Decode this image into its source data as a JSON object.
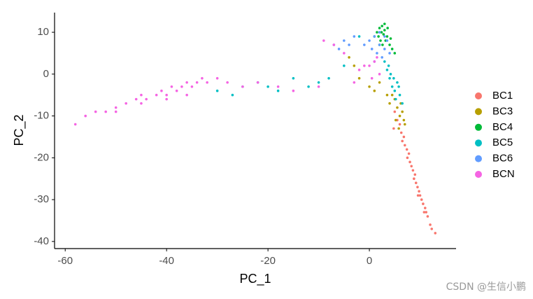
{
  "chart_data": {
    "type": "scatter",
    "xlabel": "PC_1",
    "ylabel": "PC_2",
    "xlim": [
      -62.1,
      17.1
    ],
    "ylim": [
      -41.7,
      14.7
    ],
    "xticks": [
      -60,
      -40,
      -20,
      0
    ],
    "yticks": [
      10,
      0,
      -10,
      -20,
      -30,
      -40
    ],
    "grid": false,
    "legend": "right",
    "series": [
      {
        "name": "BC1",
        "color": "#F8766D",
        "x": [
          5,
          5.5,
          6,
          6.3,
          6.8,
          7,
          7.4,
          7.8,
          8,
          8.3,
          8.6,
          9,
          9.2,
          9.5,
          9.8,
          10,
          10.3,
          10.6,
          11,
          11.2,
          11.5,
          12,
          6.5,
          7.5,
          8.8,
          9.6,
          10.8,
          4.8,
          12.3,
          13
        ],
        "values": [
          -9,
          -11,
          -12,
          -14,
          -15,
          -17,
          -18,
          -19,
          -21,
          -22,
          -23,
          -24,
          -26,
          -27,
          -28,
          -29,
          -30,
          -31,
          -32,
          -33,
          -34,
          -36,
          -16,
          -20,
          -25,
          -29,
          -33,
          -13,
          -37,
          -38
        ]
      },
      {
        "name": "BC3",
        "color": "#B79F00",
        "x": [
          5,
          5.5,
          6,
          6.5,
          5.2,
          6.2,
          4.5,
          7,
          5.8,
          -3,
          -2,
          0,
          1,
          2,
          3.5,
          -4,
          4,
          6.8
        ],
        "values": [
          -6,
          -8,
          -10,
          -9,
          -11,
          -7,
          -5,
          -12,
          -13,
          2,
          -1,
          -3,
          -4,
          -2,
          -5,
          4,
          -7,
          -11
        ]
      },
      {
        "name": "BC4",
        "color": "#00BA38",
        "x": [
          1.5,
          2,
          2.5,
          3,
          3.5,
          2.2,
          2.8,
          1.8,
          3.2,
          4,
          4.5,
          2.6,
          3.6,
          1,
          5,
          4.2,
          2.4,
          3,
          2
        ],
        "values": [
          10,
          11,
          11.5,
          10.5,
          9,
          8,
          9.5,
          9,
          8,
          7,
          6,
          7,
          11,
          9,
          5,
          8.5,
          10,
          12,
          7
        ]
      },
      {
        "name": "BC5",
        "color": "#00BFC4",
        "x": [
          3,
          3.5,
          4,
          4.5,
          5,
          5.5,
          6,
          4.2,
          5.2,
          5.8,
          6.5,
          3.8,
          4.8,
          -30,
          -25,
          -22,
          -18,
          -15,
          -12,
          -10,
          -8,
          -27,
          -20,
          -5,
          -2
        ],
        "values": [
          3,
          1,
          -1,
          -3,
          -4,
          -2,
          -5,
          0,
          -6,
          -3,
          -7,
          2,
          -1,
          -4,
          -3,
          -2,
          -4,
          -1,
          -3,
          -2,
          -1,
          -5,
          -3,
          2,
          9
        ]
      },
      {
        "name": "BC6",
        "color": "#619CFF",
        "x": [
          0,
          1,
          2,
          3,
          1.5,
          2.5,
          3.5,
          0.5,
          2,
          4,
          -1,
          -5,
          -6,
          -4,
          -7,
          -3,
          1,
          3
        ],
        "values": [
          8,
          9,
          7,
          6,
          5,
          4,
          8,
          6,
          10,
          5,
          7,
          8,
          6,
          7,
          7,
          9,
          3,
          9
        ]
      },
      {
        "name": "BCN",
        "color": "#F564E3",
        "x": [
          -58,
          -56,
          -54,
          -52,
          -50,
          -48,
          -46,
          -45,
          -44,
          -42,
          -41,
          -40,
          -39,
          -38,
          -37,
          -36,
          -35,
          -34,
          -33,
          -32,
          -30,
          -28,
          -25,
          -22,
          -18,
          -15,
          -10,
          -5,
          -2,
          0,
          1,
          2,
          0.5,
          1.5,
          -1,
          -7,
          -3,
          -9,
          -50,
          -45,
          -40,
          -36
        ],
        "values": [
          -12,
          -10,
          -9,
          -9,
          -8,
          -7,
          -6,
          -5,
          -6,
          -5,
          -4,
          -5,
          -3,
          -4,
          -3,
          -2,
          -3,
          -2,
          -1,
          -2,
          -1,
          -2,
          -3,
          -2,
          -3,
          -4,
          -3,
          5,
          1,
          2,
          3,
          0,
          -1,
          4,
          2,
          7,
          -2,
          8,
          -9,
          -7,
          -6,
          -5
        ]
      }
    ]
  },
  "watermark": "CSDN @生信小鹏"
}
